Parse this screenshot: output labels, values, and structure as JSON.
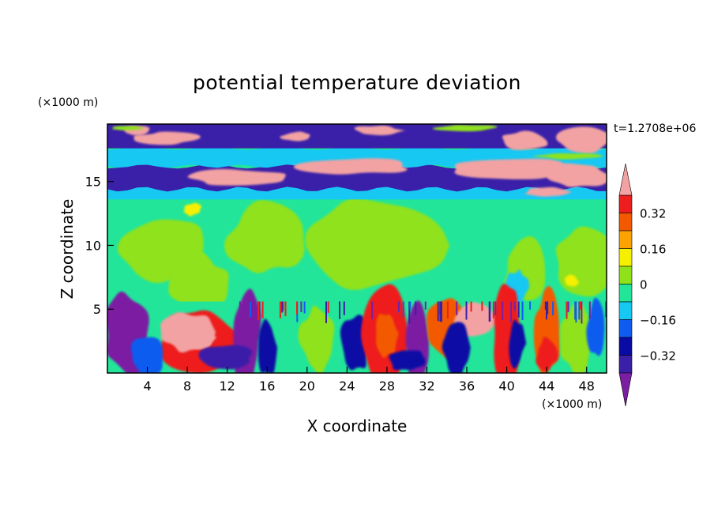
{
  "chart_data": {
    "type": "heatmap",
    "title": "potential temperature deviation",
    "xlabel": "X coordinate",
    "ylabel": "Z coordinate",
    "x_unit": "(×1000 m)",
    "y_unit": "(×1000 m)",
    "time_label": "t=1.2708e+06",
    "xlim": [
      0,
      50
    ],
    "ylim": [
      0,
      19.5
    ],
    "x_ticks": [
      4,
      8,
      12,
      16,
      20,
      24,
      28,
      32,
      36,
      40,
      44,
      48
    ],
    "y_ticks": [
      5,
      10,
      15
    ],
    "x_tick_labels": [
      "4",
      "8",
      "12",
      "16",
      "20",
      "24",
      "28",
      "32",
      "36",
      "40",
      "44",
      "48"
    ],
    "y_tick_labels": [
      "5",
      "10",
      "15"
    ],
    "colorbar": {
      "levels": [
        -0.4,
        -0.32,
        -0.24,
        -0.16,
        -0.08,
        0,
        0.08,
        0.16,
        0.24,
        0.32,
        0.4
      ],
      "tick_values": [
        0.32,
        0.16,
        0,
        -0.16,
        -0.32
      ],
      "tick_labels": [
        "0.32",
        "0.16",
        "0",
        "−0.16",
        "−0.32"
      ],
      "colors": [
        "#7b1fa2",
        "#3a1fa8",
        "#0a0aa5",
        "#0f5cf0",
        "#16c8f2",
        "#22e59a",
        "#8fe21a",
        "#f5f000",
        "#fba302",
        "#f35a00",
        "#ee1e1e",
        "#f2a2a2"
      ],
      "extend": "both"
    }
  }
}
